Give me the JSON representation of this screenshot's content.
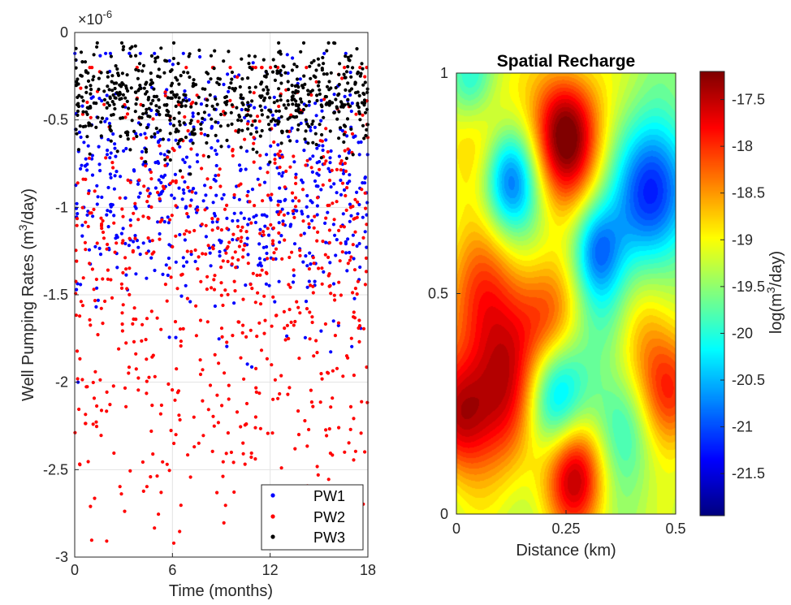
{
  "chart_data": [
    {
      "type": "scatter",
      "xlabel": "Time (months)",
      "ylabel": "Well Pumping Rates (m³/day)",
      "ylabel_parts": {
        "pre": "Well Pumping Rates (m",
        "sup": "3",
        "post": "/day)"
      },
      "exponent_label": {
        "base": "×10",
        "sup": "-6"
      },
      "xlim": [
        0,
        18
      ],
      "ylim": [
        -3,
        0
      ],
      "xticks": [
        0,
        6,
        12,
        18
      ],
      "xtick_labels": [
        "0",
        "6",
        "12",
        "18"
      ],
      "yticks": [
        0,
        -0.5,
        -1,
        -1.5,
        -2,
        -2.5,
        -3
      ],
      "ytick_labels": [
        "0",
        "-0.5",
        "-1",
        "-1.5",
        "-2",
        "-2.5",
        "-3"
      ],
      "grid": true,
      "legend_position": "bottom-right",
      "series": [
        {
          "name": "PW1",
          "color": "#0000ff",
          "n_points": 600,
          "y_mean": -0.9,
          "y_sd": 0.35,
          "y_min": -2.0,
          "y_max": -0.12
        },
        {
          "name": "PW2",
          "color": "#ff0000",
          "n_points": 750,
          "y_mean": -1.3,
          "y_sd": 0.55,
          "y_min": -2.92,
          "y_max": -0.2
        },
        {
          "name": "PW3",
          "color": "#000000",
          "n_points": 650,
          "y_mean": -0.37,
          "y_sd": 0.14,
          "y_min": -0.85,
          "y_max": -0.06
        }
      ]
    },
    {
      "type": "heatmap",
      "title": "Spatial Recharge",
      "xlabel": "Distance (km)",
      "xlim": [
        0,
        0.5
      ],
      "ylim": [
        0,
        1
      ],
      "xticks": [
        0,
        0.25,
        0.5
      ],
      "xtick_labels": [
        "0",
        "0.25",
        "0.5"
      ],
      "yticks": [
        0,
        0.5,
        1
      ],
      "ytick_labels": [
        "0",
        "0.5",
        "1"
      ],
      "colorbar": {
        "label": "log(m³/day)",
        "label_parts": {
          "pre": "log(m",
          "sup": "3",
          "post": "/day)"
        },
        "range": [
          -21.95,
          -17.2
        ],
        "ticks": [
          -17.5,
          -18,
          -18.5,
          -19,
          -19.5,
          -20,
          -20.5,
          -21,
          -21.5
        ],
        "tick_labels": [
          "-17.5",
          "-18",
          "-18.5",
          "-19",
          "-19.5",
          "-20",
          "-20.5",
          "-21",
          "-21.5"
        ],
        "colormap": "jet"
      },
      "field_blobs": [
        {
          "x": 0.25,
          "y": 0.86,
          "value": 2.0,
          "sigma": 0.055
        },
        {
          "x": 0.27,
          "y": 0.09,
          "value": 1.6,
          "sigma": 0.05
        },
        {
          "x": 0.11,
          "y": 0.28,
          "value": 1.5,
          "sigma": 0.07
        },
        {
          "x": 0.0,
          "y": 0.22,
          "value": 1.2,
          "sigma": 0.05
        },
        {
          "x": 0.48,
          "y": 0.28,
          "value": 1.3,
          "sigma": 0.05
        },
        {
          "x": 0.06,
          "y": 0.5,
          "value": 1.0,
          "sigma": 0.06
        },
        {
          "x": 0.22,
          "y": 0.45,
          "value": 0.9,
          "sigma": 0.05
        },
        {
          "x": 0.05,
          "y": 0.88,
          "value": 0.7,
          "sigma": 0.06
        },
        {
          "x": 0.42,
          "y": 0.42,
          "value": 0.6,
          "sigma": 0.05
        },
        {
          "x": 0.45,
          "y": 0.73,
          "value": -1.8,
          "sigma": 0.06
        },
        {
          "x": 0.12,
          "y": 0.76,
          "value": -1.5,
          "sigma": 0.045
        },
        {
          "x": 0.32,
          "y": 0.6,
          "value": -1.2,
          "sigma": 0.04
        },
        {
          "x": 0.22,
          "y": 0.26,
          "value": -1.4,
          "sigma": 0.05
        },
        {
          "x": 0.03,
          "y": 0.98,
          "value": -0.9,
          "sigma": 0.04
        },
        {
          "x": 0.38,
          "y": 0.2,
          "value": -0.7,
          "sigma": 0.05
        },
        {
          "x": 0.35,
          "y": 0.45,
          "value": -0.6,
          "sigma": 0.05
        }
      ]
    }
  ]
}
